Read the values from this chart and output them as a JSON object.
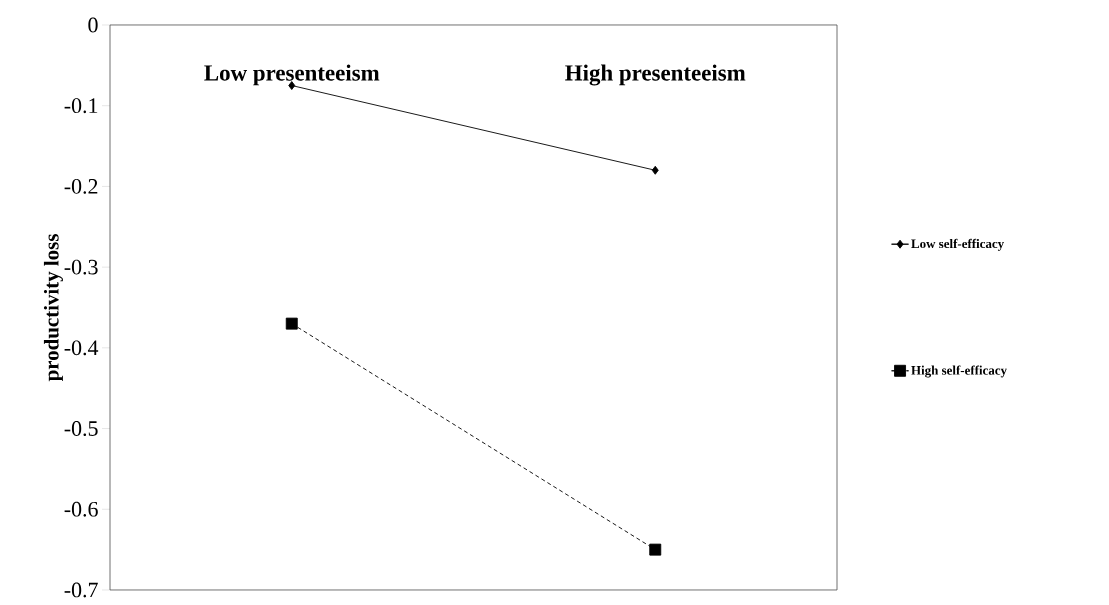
{
  "chart_data": {
    "type": "line",
    "categories": [
      "Low presenteeism",
      "High presenteeism"
    ],
    "series": [
      {
        "name": "Low self-efficacy",
        "color": "#000000",
        "values": [
          -0.075,
          -0.18
        ],
        "marker": "diamond",
        "line_style": "solid"
      },
      {
        "name": "High self-efficacy",
        "color": "#000000",
        "values": [
          -0.37,
          -0.65
        ],
        "marker": "square",
        "line_style": "dashed"
      }
    ],
    "ylabel": "productivity loss",
    "ylim": [
      -0.7,
      0
    ],
    "yticks": [
      0,
      -0.1,
      -0.2,
      -0.3,
      -0.4,
      -0.5,
      -0.6,
      -0.7
    ],
    "legend": "right"
  }
}
